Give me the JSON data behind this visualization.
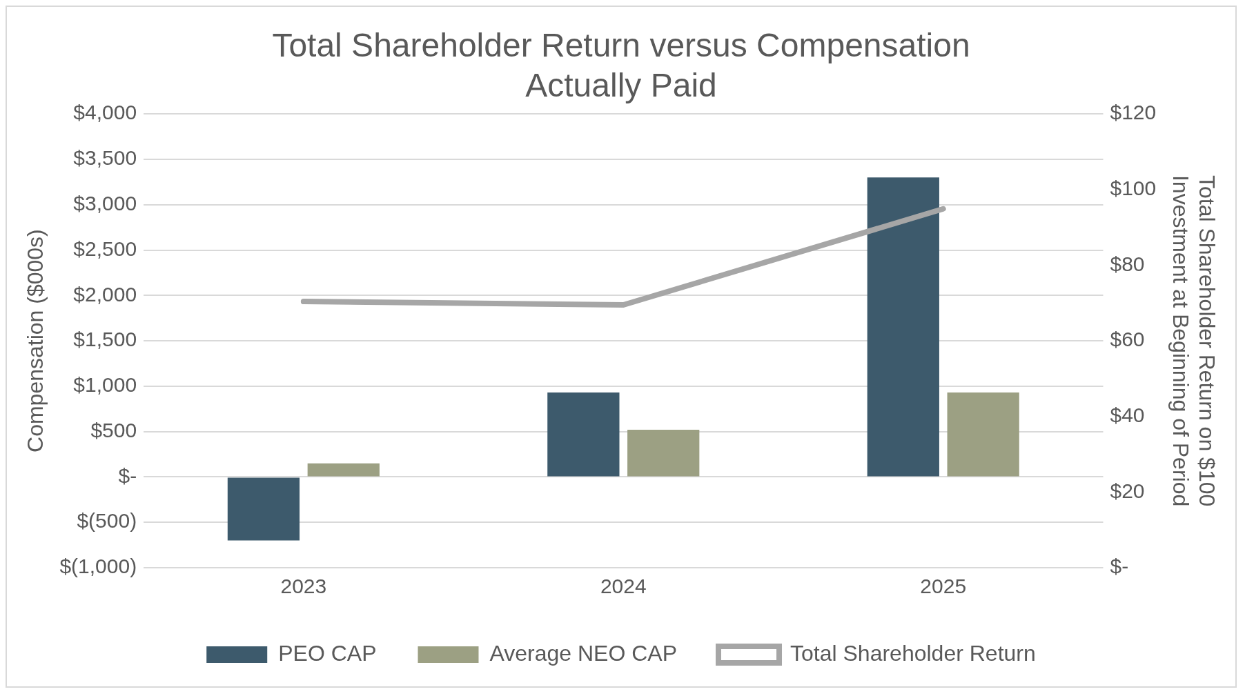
{
  "chart_data": {
    "type": "bar",
    "title": "Total Shareholder Return versus Compensation Actually Paid",
    "categories": [
      "2023",
      "2024",
      "2025"
    ],
    "series": [
      {
        "name": "PEO CAP",
        "color": "#3d5a6c",
        "values": [
          -700,
          930,
          3300
        ]
      },
      {
        "name": "Average NEO CAP",
        "color": "#9ca083",
        "values": [
          150,
          520,
          930
        ]
      },
      {
        "name": "Total Shareholder Return",
        "type": "line",
        "axis": "y2",
        "color": "#a6a6a6",
        "values": [
          70.4,
          69.5,
          94.9
        ]
      }
    ],
    "ylabel": "Compensation ($000s)",
    "y2label": "Total Shareholder Return on $100 Investment at Beginning of Period",
    "ylim": [
      -1000,
      4000
    ],
    "yticks": [
      {
        "value": -1000,
        "label": "$(1,000)"
      },
      {
        "value": -500,
        "label": "$(500)"
      },
      {
        "value": 0,
        "label": "$-"
      },
      {
        "value": 500,
        "label": "$500"
      },
      {
        "value": 1000,
        "label": "$1,000"
      },
      {
        "value": 1500,
        "label": "$1,500"
      },
      {
        "value": 2000,
        "label": "$2,000"
      },
      {
        "value": 2500,
        "label": "$2,500"
      },
      {
        "value": 3000,
        "label": "$3,000"
      },
      {
        "value": 3500,
        "label": "$3,500"
      },
      {
        "value": 4000,
        "label": "$4,000"
      }
    ],
    "y2lim": [
      0,
      120
    ],
    "y2ticks": [
      {
        "value": 0,
        "label": "$-"
      },
      {
        "value": 20,
        "label": "$20"
      },
      {
        "value": 40,
        "label": "$40"
      },
      {
        "value": 60,
        "label": "$60"
      },
      {
        "value": 80,
        "label": "$80"
      },
      {
        "value": 100,
        "label": "$100"
      },
      {
        "value": 120,
        "label": "$120"
      }
    ],
    "grid": "y",
    "legend": "bottom",
    "marker": "none",
    "line_style": "solid"
  }
}
